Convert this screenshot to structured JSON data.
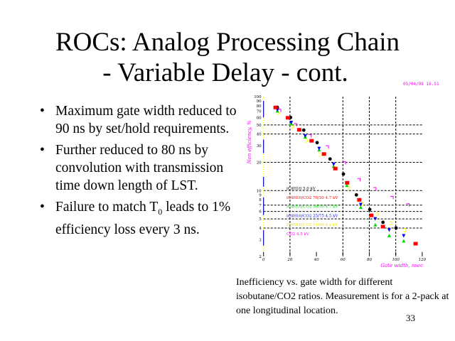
{
  "slide": {
    "title_line1": "ROCs: Analog Processing Chain",
    "title_line2": "- Variable Delay - cont.",
    "bullets": [
      {
        "text": "Maximum gate width reduced to 90 ns by set/hold requirements."
      },
      {
        "text": "Further reduced to 80 ns by convolution with transmission time down length of LST."
      },
      {
        "text_before": "Failure to match T",
        "subscript": "0",
        "text_after": " leads to 1% efficiency loss every 3 ns."
      }
    ],
    "bullet_glyph": "•",
    "caption": "Inefficiency vs. gate width for different isobutane/CO2 ratios. Measurement is for a 2-pack at one longitudinal location.",
    "page_number": "33",
    "plot_stamp": "05/04/98  16.51"
  },
  "chart_data": {
    "type": "scatter",
    "title": "",
    "xlabel": "Gate width, nsec",
    "ylabel": "Non efficiency, %",
    "xscale": "linear",
    "yscale": "log",
    "xlim": [
      0,
      120
    ],
    "ylim": [
      2,
      100
    ],
    "xticks": [
      0,
      20,
      40,
      60,
      80,
      100,
      120
    ],
    "yticks": [
      2,
      3,
      4,
      5,
      6,
      7,
      8,
      9,
      10,
      20,
      30,
      40,
      50,
      60,
      70,
      80,
      90,
      100
    ],
    "ytick_labels": [
      "2",
      "3",
      "4",
      "5",
      "6",
      "7",
      "8",
      "9",
      "10",
      "20",
      "30",
      "40",
      "50",
      "60",
      "70",
      "80",
      "90",
      "100"
    ],
    "grid": {
      "x": [
        20,
        60,
        80,
        100
      ],
      "y": [
        4,
        5,
        6,
        7,
        10,
        20,
        40,
        50
      ]
    },
    "legend_position": "lower-left-inside",
    "colors": {
      "axis_label": "#ff00ff",
      "axis": "#0000cc",
      "axis_minor": "#ffff00"
    },
    "series": [
      {
        "name": "iC4H10 5.0 kV",
        "color": "#000000",
        "marker": "circle",
        "x": [
          10.4,
          20.4,
          30.4,
          40.5,
          50.3,
          60.4,
          70.2,
          80.3,
          90.3,
          100.2
        ],
        "y": [
          77,
          60,
          44,
          32.4,
          21.7,
          15,
          9.0,
          6.3,
          4.6,
          4.0
        ]
      },
      {
        "name": "iC4H10/CO2 70/30 4.7 kV",
        "color": "#ff0000",
        "marker": "square",
        "x": [
          9.1,
          18.4,
          27,
          36.3,
          45.7,
          54.3,
          63.2,
          72.4,
          81.5,
          90.3,
          115
        ],
        "y": [
          76,
          59,
          44,
          33.6,
          24.3,
          17,
          12,
          7.9,
          5.4,
          4.1,
          2.7
        ]
      },
      {
        "name": "iC4H10/CO2 50/50 4.7 kV",
        "color": "#00dd00",
        "marker": "triangle",
        "x": [
          10.5,
          21,
          31.5,
          42,
          53,
          63,
          73.5,
          84.5,
          95,
          106
        ],
        "y": [
          70,
          51,
          37,
          27,
          18,
          11.3,
          6.6,
          4.3,
          3.3,
          2.9
        ]
      },
      {
        "name": "iC4H10/CO2 25/75 4.5 kV",
        "color": "#0000ff",
        "marker": "down-triangle",
        "x": [
          10.5,
          21,
          31.5,
          42,
          53,
          63,
          73.5,
          84.5,
          95,
          106
        ],
        "y": [
          72,
          53,
          38,
          28,
          19,
          12,
          7.1,
          5.0,
          3.8,
          3.3
        ]
      },
      {
        "name": "iC4H10/CO2 10/90 4.x kV",
        "color": "#ffff00",
        "marker": "open-circle",
        "x": [
          11,
          22,
          32.5,
          43,
          54,
          64.5,
          75,
          86,
          96.5,
          107
        ],
        "y": [
          67,
          48,
          34,
          24,
          17.5,
          10.8,
          7.2,
          5.6,
          4.5,
          3.8
        ]
      },
      {
        "name": "CO2 4.5 kV",
        "color": "#ff00ff",
        "marker": "open-square",
        "x": [
          12,
          24,
          35,
          48,
          61,
          72,
          84,
          97,
          109
        ],
        "y": [
          71,
          50,
          38,
          29,
          19.7,
          13,
          10.4,
          8.4,
          7.0
        ]
      }
    ]
  }
}
